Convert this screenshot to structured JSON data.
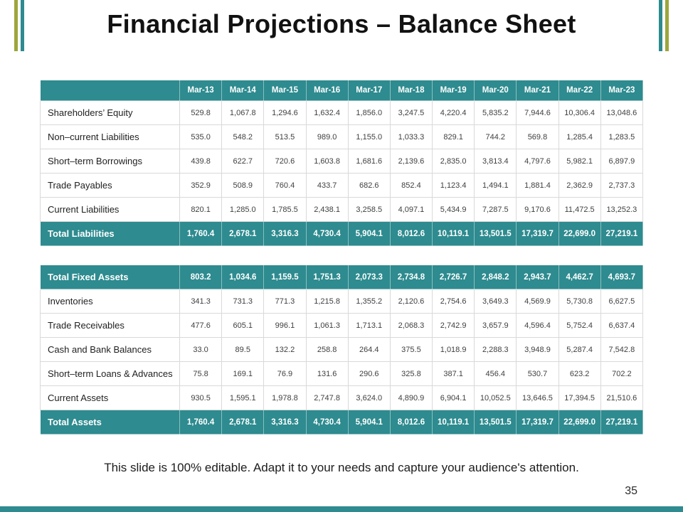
{
  "slide": {
    "title": "Financial Projections – Balance Sheet",
    "footer_note": "This slide is 100% editable. Adapt it to your needs and capture your audience's attention.",
    "page_number": "35"
  },
  "colors": {
    "teal": "#2E8B8F",
    "olive": "#9CA63C"
  },
  "chart_data": {
    "type": "table",
    "columns": [
      "",
      "Mar-13",
      "Mar-14",
      "Mar-15",
      "Mar-16",
      "Mar-17",
      "Mar-18",
      "Mar-19",
      "Mar-20",
      "Mar-21",
      "Mar-22",
      "Mar-23"
    ],
    "rows": [
      {
        "type": "data",
        "label": "Shareholders’ Equity",
        "values": [
          "529.8",
          "1,067.8",
          "1,294.6",
          "1,632.4",
          "1,856.0",
          "3,247.5",
          "4,220.4",
          "5,835.2",
          "7,944.6",
          "10,306.4",
          "13,048.6"
        ]
      },
      {
        "type": "data",
        "label": "Non–current Liabilities",
        "values": [
          "535.0",
          "548.2",
          "513.5",
          "989.0",
          "1,155.0",
          "1,033.3",
          "829.1",
          "744.2",
          "569.8",
          "1,285.4",
          "1,283.5"
        ]
      },
      {
        "type": "data",
        "label": "Short–term Borrowings",
        "values": [
          "439.8",
          "622.7",
          "720.6",
          "1,603.8",
          "1,681.6",
          "2,139.6",
          "2,835.0",
          "3,813.4",
          "4,797.6",
          "5,982.1",
          "6,897.9"
        ]
      },
      {
        "type": "data",
        "label": "Trade Payables",
        "values": [
          "352.9",
          "508.9",
          "760.4",
          "433.7",
          "682.6",
          "852.4",
          "1,123.4",
          "1,494.1",
          "1,881.4",
          "2,362.9",
          "2,737.3"
        ]
      },
      {
        "type": "data",
        "label": "Current Liabilities",
        "values": [
          "820.1",
          "1,285.0",
          "1,785.5",
          "2,438.1",
          "3,258.5",
          "4,097.1",
          "5,434.9",
          "7,287.5",
          "9,170.6",
          "11,472.5",
          "13,252.3"
        ]
      },
      {
        "type": "total",
        "label": "Total Liabilities",
        "values": [
          "1,760.4",
          "2,678.1",
          "3,316.3",
          "4,730.4",
          "5,904.1",
          "8,012.6",
          "10,119.1",
          "13,501.5",
          "17,319.7",
          "22,699.0",
          "27,219.1"
        ]
      },
      {
        "type": "spacer",
        "label": "",
        "values": [
          "",
          "",
          "",
          "",
          "",
          "",
          "",
          "",
          "",
          "",
          ""
        ]
      },
      {
        "type": "total",
        "label": "Total Fixed Assets",
        "values": [
          "803.2",
          "1,034.6",
          "1,159.5",
          "1,751.3",
          "2,073.3",
          "2,734.8",
          "2,726.7",
          "2,848.2",
          "2,943.7",
          "4,462.7",
          "4,693.7"
        ]
      },
      {
        "type": "data",
        "label": "Inventories",
        "values": [
          "341.3",
          "731.3",
          "771.3",
          "1,215.8",
          "1,355.2",
          "2,120.6",
          "2,754.6",
          "3,649.3",
          "4,569.9",
          "5,730.8",
          "6,627.5"
        ]
      },
      {
        "type": "data",
        "label": "Trade Receivables",
        "values": [
          "477.6",
          "605.1",
          "996.1",
          "1,061.3",
          "1,713.1",
          "2,068.3",
          "2,742.9",
          "3,657.9",
          "4,596.4",
          "5,752.4",
          "6,637.4"
        ]
      },
      {
        "type": "data",
        "label": "Cash and Bank Balances",
        "values": [
          "33.0",
          "89.5",
          "132.2",
          "258.8",
          "264.4",
          "375.5",
          "1,018.9",
          "2,288.3",
          "3,948.9",
          "5,287.4",
          "7,542.8"
        ]
      },
      {
        "type": "data",
        "label": "Short–term Loans & Advances",
        "values": [
          "75.8",
          "169.1",
          "76.9",
          "131.6",
          "290.6",
          "325.8",
          "387.1",
          "456.4",
          "530.7",
          "623.2",
          "702.2"
        ]
      },
      {
        "type": "data",
        "label": "Current Assets",
        "values": [
          "930.5",
          "1,595.1",
          "1,978.8",
          "2,747.8",
          "3,624.0",
          "4,890.9",
          "6,904.1",
          "10,052.5",
          "13,646.5",
          "17,394.5",
          "21,510.6"
        ]
      },
      {
        "type": "total",
        "label": "Total Assets",
        "values": [
          "1,760.4",
          "2,678.1",
          "3,316.3",
          "4,730.4",
          "5,904.1",
          "8,012.6",
          "10,119.1",
          "13,501.5",
          "17,319.7",
          "22,699.0",
          "27,219.1"
        ]
      }
    ]
  }
}
